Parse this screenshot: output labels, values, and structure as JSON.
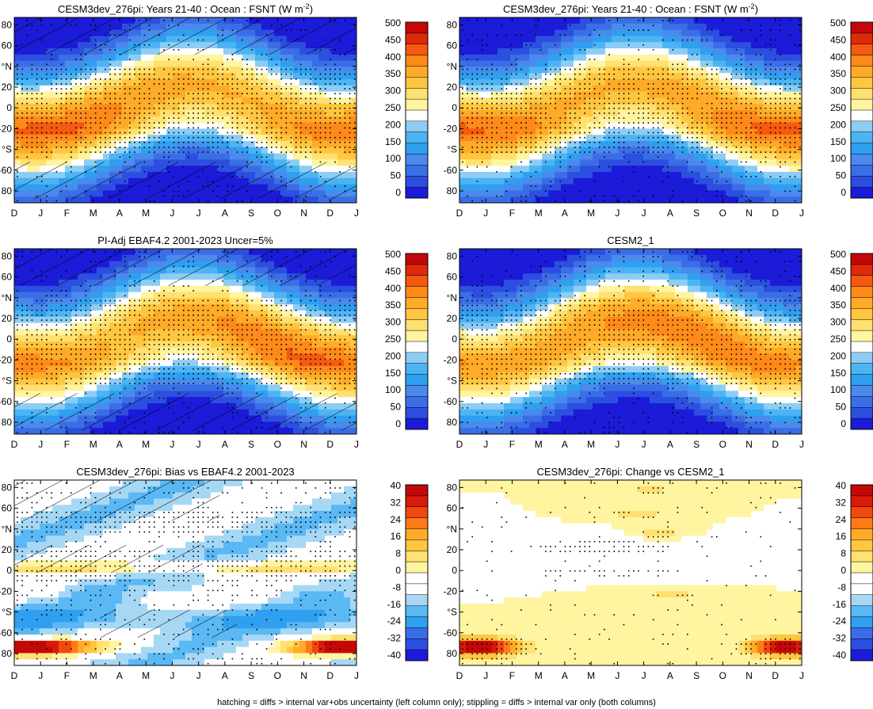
{
  "figure": {
    "footnote": "hatching = diffs > internal var+obs uncertainty (left column only); stippling = diffs > internal var only (both columns)"
  },
  "common": {
    "x_ticks": [
      "D",
      "J",
      "F",
      "M",
      "A",
      "M",
      "J",
      "J",
      "A",
      "S",
      "O",
      "N",
      "D",
      "J"
    ],
    "y_ticks": [
      "80",
      "60",
      "°N",
      "20",
      "0",
      "-20",
      "°S",
      "-60",
      "80"
    ]
  },
  "colors": {
    "abs_levels": [
      "#1b1bd8",
      "#2c4fe0",
      "#3a6ee6",
      "#4a8aec",
      "#2f9ff0",
      "#4db4f4",
      "#8bcdf4",
      "#ffffff",
      "#fff4a0",
      "#ffe070",
      "#ffc640",
      "#ffab28",
      "#ff8a1a",
      "#f45a10",
      "#dd2a0a",
      "#c40808"
    ],
    "diff_levels": [
      "#1b1bd8",
      "#2c4fe0",
      "#3a6ee6",
      "#2f9ff0",
      "#5ab8f4",
      "#a6d8f6",
      "#ffffff",
      "#ffffff",
      "#fff4a0",
      "#ffe070",
      "#ffc640",
      "#ffab28",
      "#ff7a16",
      "#f04810",
      "#d81a0a",
      "#c40808"
    ]
  },
  "colorbars": {
    "abs": {
      "labels": [
        "500",
        "450",
        "400",
        "350",
        "300",
        "250",
        "200",
        "150",
        "100",
        "50",
        "0"
      ]
    },
    "diff": {
      "labels": [
        "40",
        "32",
        "24",
        "16",
        "8",
        "0",
        "-8",
        "-16",
        "-24",
        "-32",
        "-40"
      ]
    }
  },
  "chart_data": [
    {
      "type": "heatmap",
      "title": "CESM3dev_276pi: Years 21-40 : Ocean : FSNT (W m",
      "title_sup": "-2",
      "title_tail": ")",
      "colorbar": "abs",
      "field": "abs",
      "seed": 1,
      "hatching": true
    },
    {
      "type": "heatmap",
      "title": "CESM3dev_276pi: Years 21-40 : Ocean : FSNT (W m",
      "title_sup": "-2",
      "title_tail": ")",
      "colorbar": "abs",
      "field": "abs",
      "seed": 2,
      "hatching": false
    },
    {
      "type": "heatmap",
      "title": "PI-Adj EBAF4.2 2001-2023 Uncer=5%",
      "title_sup": "",
      "title_tail": "",
      "colorbar": "abs",
      "field": "abs",
      "seed": 3,
      "hatching": true
    },
    {
      "type": "heatmap",
      "title": "CESM2_1",
      "title_sup": "",
      "title_tail": "",
      "colorbar": "abs",
      "field": "abs",
      "seed": 4,
      "hatching": false
    },
    {
      "type": "heatmap",
      "title": "CESM3dev_276pi: Bias vs EBAF4.2 2001-2023",
      "title_sup": "",
      "title_tail": "",
      "colorbar": "diff",
      "field": "bias",
      "seed": 5,
      "hatching": true
    },
    {
      "type": "heatmap",
      "title": "CESM3dev_276pi: Change vs CESM2_1",
      "title_sup": "",
      "title_tail": "",
      "colorbar": "diff",
      "field": "change",
      "seed": 6,
      "hatching": false
    }
  ]
}
